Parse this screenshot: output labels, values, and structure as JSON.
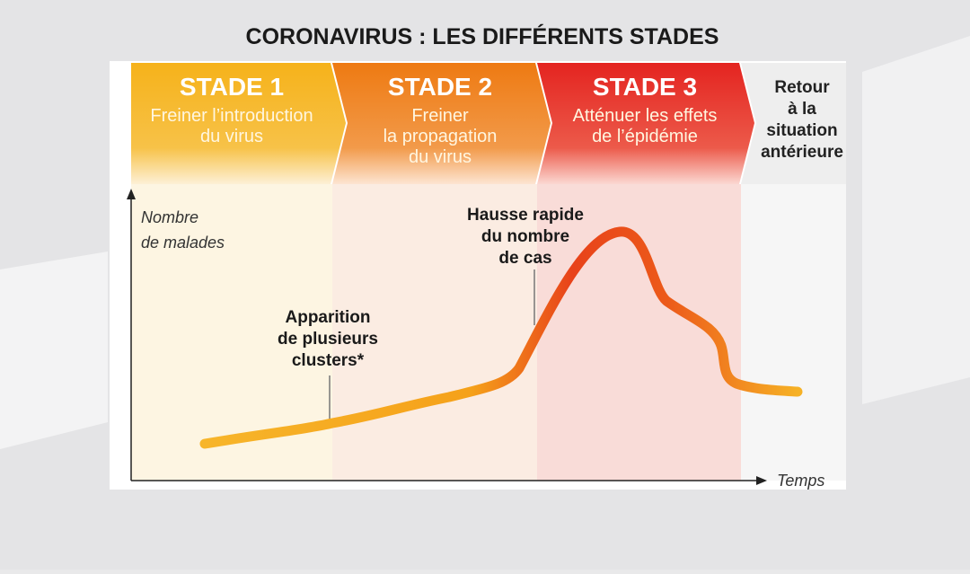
{
  "title": "CORONAVIRUS : LES DIFFÉRENTS STADES",
  "stages": [
    {
      "title": "STADE 1",
      "lines": [
        "Freiner l’introduction",
        "du virus"
      ]
    },
    {
      "title": "STADE 2",
      "lines": [
        "Freiner",
        "la propagation",
        "du virus"
      ]
    },
    {
      "title": "STADE 3",
      "lines": [
        "Atténuer les effets",
        "de l’épidémie"
      ]
    },
    {
      "lines": [
        "Retour",
        "à la",
        "situation",
        "antérieure"
      ]
    }
  ],
  "y_axis_label": [
    "Nombre",
    "de malades"
  ],
  "x_axis_label": "Temps",
  "annotations": [
    {
      "lines": [
        "Apparition",
        "de plusieurs",
        "clusters*"
      ]
    },
    {
      "lines": [
        "Hausse rapide",
        "du nombre",
        "de cas"
      ]
    }
  ]
}
